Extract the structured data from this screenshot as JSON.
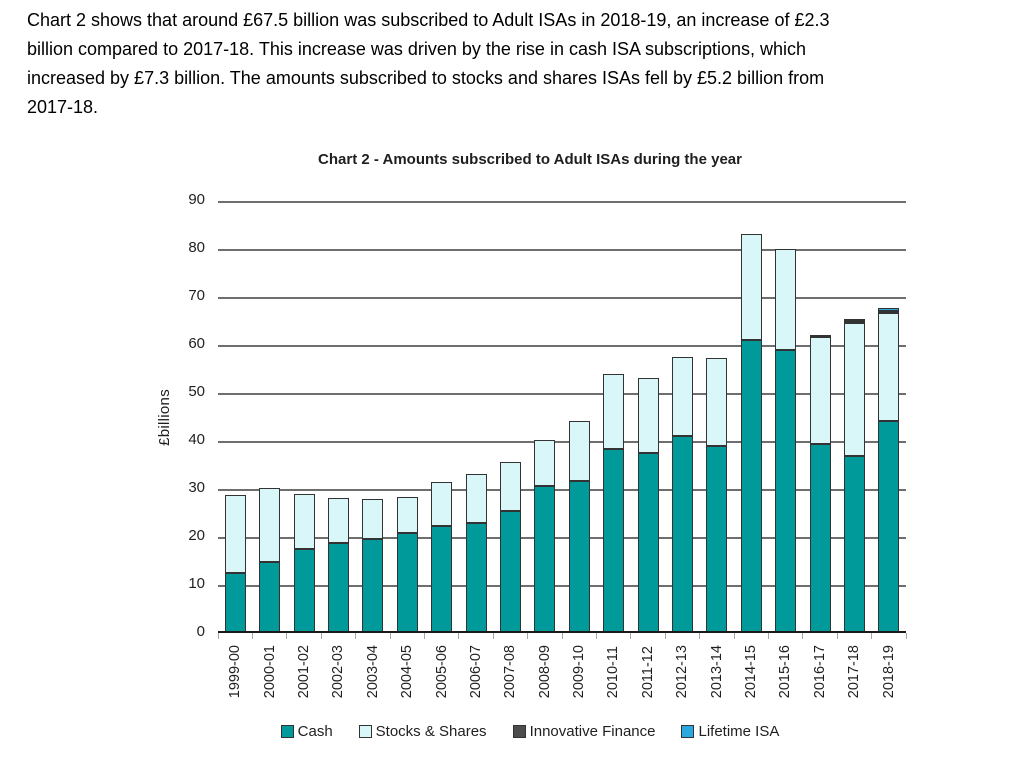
{
  "intro": {
    "lines": [
      "Chart 2 shows that around £67.5 billion was subscribed to Adult ISAs in 2018-19, an increase of £2.3",
      "billion compared to 2017-18. This increase was driven by the rise in cash ISA subscriptions, which",
      "increased by £7.3 billion. The amounts subscribed to stocks and shares ISAs fell by £5.2 billion from",
      "2017-18."
    ]
  },
  "chart_data": {
    "type": "bar",
    "stacked": true,
    "title": "Chart 2 - Amounts subscribed to Adult ISAs during the year",
    "ylabel": "£billions",
    "ylim": [
      0,
      90
    ],
    "ytick_step": 10,
    "grid": "horizontal",
    "legend_position": "bottom",
    "categories": [
      "1999-00",
      "2000-01",
      "2001-02",
      "2002-03",
      "2003-04",
      "2004-05",
      "2005-06",
      "2006-07",
      "2007-08",
      "2008-09",
      "2009-10",
      "2010-11",
      "2011-12",
      "2012-13",
      "2013-14",
      "2014-15",
      "2015-16",
      "2016-17",
      "2017-18",
      "2018-19"
    ],
    "series": [
      {
        "name": "Cash",
        "color": "#009a9a",
        "values": [
          12.2,
          14.5,
          17.2,
          18.6,
          19.4,
          20.6,
          22.1,
          22.8,
          25.3,
          30.4,
          31.4,
          38.2,
          37.2,
          40.9,
          38.7,
          60.9,
          58.7,
          39.2,
          36.7,
          43.9
        ]
      },
      {
        "name": "Stocks & Shares",
        "color": "#d9f7f9",
        "values": [
          16.2,
          15.5,
          11.5,
          9.3,
          8.3,
          7.6,
          9.2,
          10.2,
          10.2,
          9.6,
          12.5,
          15.6,
          15.6,
          16.4,
          18.4,
          22.1,
          21.1,
          22.3,
          27.8,
          22.6
        ]
      },
      {
        "name": "Innovative Finance",
        "color": "#4d4d4d",
        "values": [
          0,
          0,
          0,
          0,
          0,
          0,
          0,
          0,
          0,
          0,
          0,
          0,
          0,
          0,
          0,
          0,
          0,
          0.3,
          0.3,
          0.4
        ]
      },
      {
        "name": "Lifetime ISA",
        "color": "#29a9e0",
        "values": [
          0,
          0,
          0,
          0,
          0,
          0,
          0,
          0,
          0,
          0,
          0,
          0,
          0,
          0,
          0,
          0,
          0,
          0,
          0.4,
          0.6
        ]
      }
    ]
  },
  "colors": {
    "gridline": "#6e6e6e",
    "axis_line": "#1a1a1a",
    "tick": "#a8a8a8",
    "segment_border": "#333333"
  }
}
